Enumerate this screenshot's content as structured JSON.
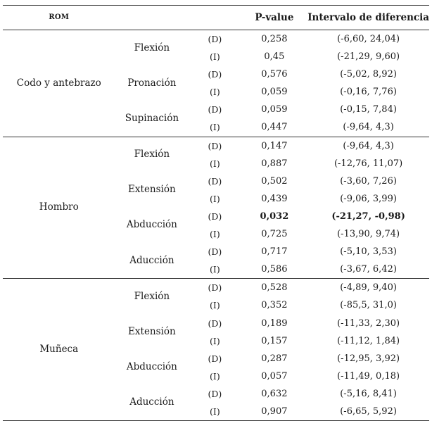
{
  "headers": {
    "rom": "ROM",
    "movement": "",
    "side": "",
    "p_value": "P-value",
    "interval": "Intervalo de diferencia"
  },
  "groups": [
    {
      "region": "Codo y antebrazo",
      "movements": [
        {
          "name": "Flexión",
          "rows": [
            {
              "side": "(D)",
              "p": "0,258",
              "interval": "(-6,60, 24,04)"
            },
            {
              "side": "(I)",
              "p": "0,45",
              "interval": "(-21,29, 9,60)"
            }
          ]
        },
        {
          "name": "Pronación",
          "rows": [
            {
              "side": "(D)",
              "p": "0,576",
              "interval": "(-5,02, 8,92)"
            },
            {
              "side": "(I)",
              "p": "0,059",
              "interval": "(-0,16, 7,76)"
            }
          ]
        },
        {
          "name": "Supinación",
          "rows": [
            {
              "side": "(D)",
              "p": "0,059",
              "interval": "(-0,15, 7,84)"
            },
            {
              "side": "(I)",
              "p": "0,447",
              "interval": "(-9,64, 4,3)"
            }
          ]
        }
      ]
    },
    {
      "region": "Hombro",
      "movements": [
        {
          "name": "Flexión",
          "rows": [
            {
              "side": "(D)",
              "p": "0,147",
              "interval": "(-9,64, 4,3)"
            },
            {
              "side": "(I)",
              "p": "0,887",
              "interval": "(-12,76, 11,07)"
            }
          ]
        },
        {
          "name": "Extensión",
          "rows": [
            {
              "side": "(D)",
              "p": "0,502",
              "interval": "(-3,60, 7,26)"
            },
            {
              "side": "(I)",
              "p": "0,439",
              "interval": "(-9,06, 3,99)"
            }
          ]
        },
        {
          "name": "Abducción",
          "rows": [
            {
              "side": "(D)",
              "p": "0,032",
              "interval": "(-21,27, -0,98)",
              "bold": true
            },
            {
              "side": "(I)",
              "p": "0,725",
              "interval": "(-13,90, 9,74)"
            }
          ]
        },
        {
          "name": "Aducción",
          "rows": [
            {
              "side": "(D)",
              "p": "0,717",
              "interval": "(-5,10, 3,53)"
            },
            {
              "side": "(I)",
              "p": "0,586",
              "interval": "(-3,67, 6,42)"
            }
          ]
        }
      ]
    },
    {
      "region": "Muñeca",
      "movements": [
        {
          "name": "Flexión",
          "rows": [
            {
              "side": "(D)",
              "p": "0,528",
              "interval": "(-4,89, 9,40)"
            },
            {
              "side": "(I)",
              "p": "0,352",
              "interval": "(-85,5, 31,0)"
            }
          ]
        },
        {
          "name": "Extensión",
          "rows": [
            {
              "side": "(D)",
              "p": "0,189",
              "interval": "(-11,33, 2,30)"
            },
            {
              "side": "(I)",
              "p": "0,157",
              "interval": "(-11,12, 1,84)"
            }
          ]
        },
        {
          "name": "Abducción",
          "rows": [
            {
              "side": "(D)",
              "p": "0,287",
              "interval": "(-12,95, 3,92)"
            },
            {
              "side": "(I)",
              "p": "0,057",
              "interval": "(-11,49, 0,18)"
            }
          ]
        },
        {
          "name": "Aducción",
          "rows": [
            {
              "side": "(D)",
              "p": "0,632",
              "interval": "(-5,16, 8,41)"
            },
            {
              "side": "(I)",
              "p": "0,907",
              "interval": "(-6,65, 5,92)"
            }
          ]
        }
      ]
    }
  ]
}
